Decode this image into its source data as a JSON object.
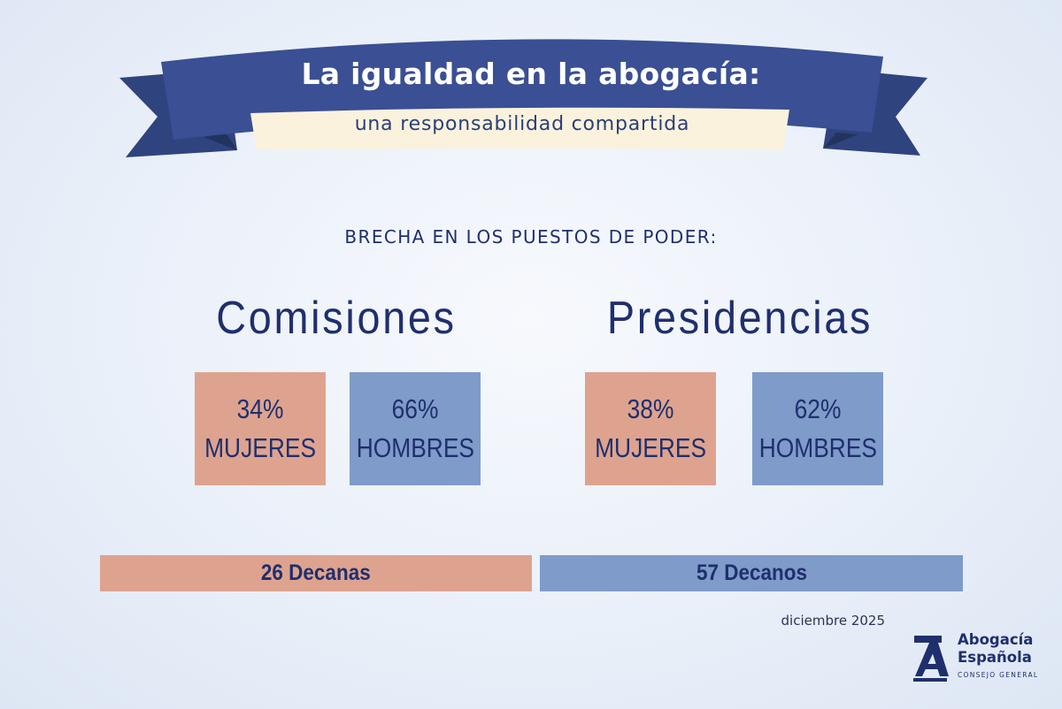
{
  "banner": {
    "title": "La igualdad en la abogacía:",
    "subtitle": "una responsabilidad compartida"
  },
  "section_heading": "BRECHA EN LOS PUESTOS DE PODER:",
  "groups": [
    {
      "title": "Comisiones",
      "women": {
        "value": "34%",
        "label": "MUJERES"
      },
      "men": {
        "value": "66%",
        "label": "HOMBRES"
      }
    },
    {
      "title": "Presidencias",
      "women": {
        "value": "38%",
        "label": "MUJERES"
      },
      "men": {
        "value": "62%",
        "label": "HOMBRES"
      }
    }
  ],
  "deans": {
    "women": "26 Decanas",
    "men": "57 Decanos"
  },
  "date": "diciembre 2025",
  "logo": {
    "line1": "Abogacía",
    "line2": "Española",
    "line3": "CONSEJO GENERAL"
  },
  "colors": {
    "women": "#dea38f",
    "men": "#7f9bc9",
    "ribbon": "#3a4f94",
    "text": "#1f2f6e"
  }
}
